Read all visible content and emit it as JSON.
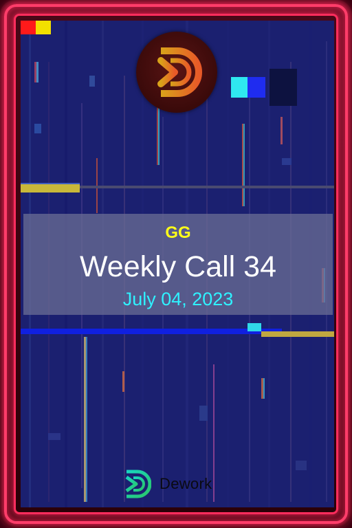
{
  "card": {
    "org": "GG",
    "title": "Weekly Call 34",
    "date": "July 04, 2023"
  },
  "logo": {
    "icon": "dework-d-logo-icon"
  },
  "brand": {
    "icon": "dework-logo-icon",
    "name": "Dework"
  },
  "colors": {
    "frame": "#ff2d5d",
    "org_text": "#ffff1a",
    "title_text": "#ffffff",
    "date_text": "#2ff2ff",
    "background": "#1a1f6a"
  }
}
